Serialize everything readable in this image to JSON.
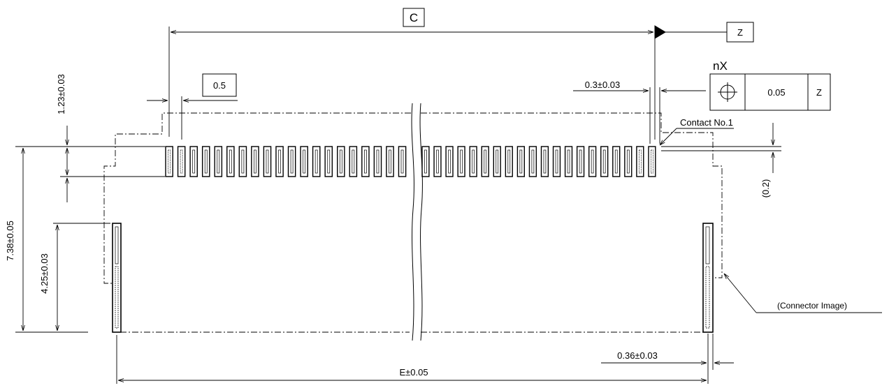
{
  "title": "",
  "labels": {
    "c_box": "C",
    "z_datum": "Z",
    "pitch_box": "0.5",
    "nx": "nX",
    "position_tolerance": "0.05",
    "position_datum": "Z",
    "contact_no1": "Contact No.1",
    "connector_image": "(Connector Image)"
  },
  "dimensions": {
    "contact_width": "0.3±0.03",
    "row_offset": "1.23±0.03",
    "total_depth": "7.38±0.05",
    "post_height": "4.25±0.03",
    "edge_gap": "(0.2)",
    "post_width": "0.36±0.03",
    "overall_length": "E±0.05"
  },
  "colors": {
    "line": "#000000",
    "background": "#ffffff"
  },
  "contact_count": 40
}
